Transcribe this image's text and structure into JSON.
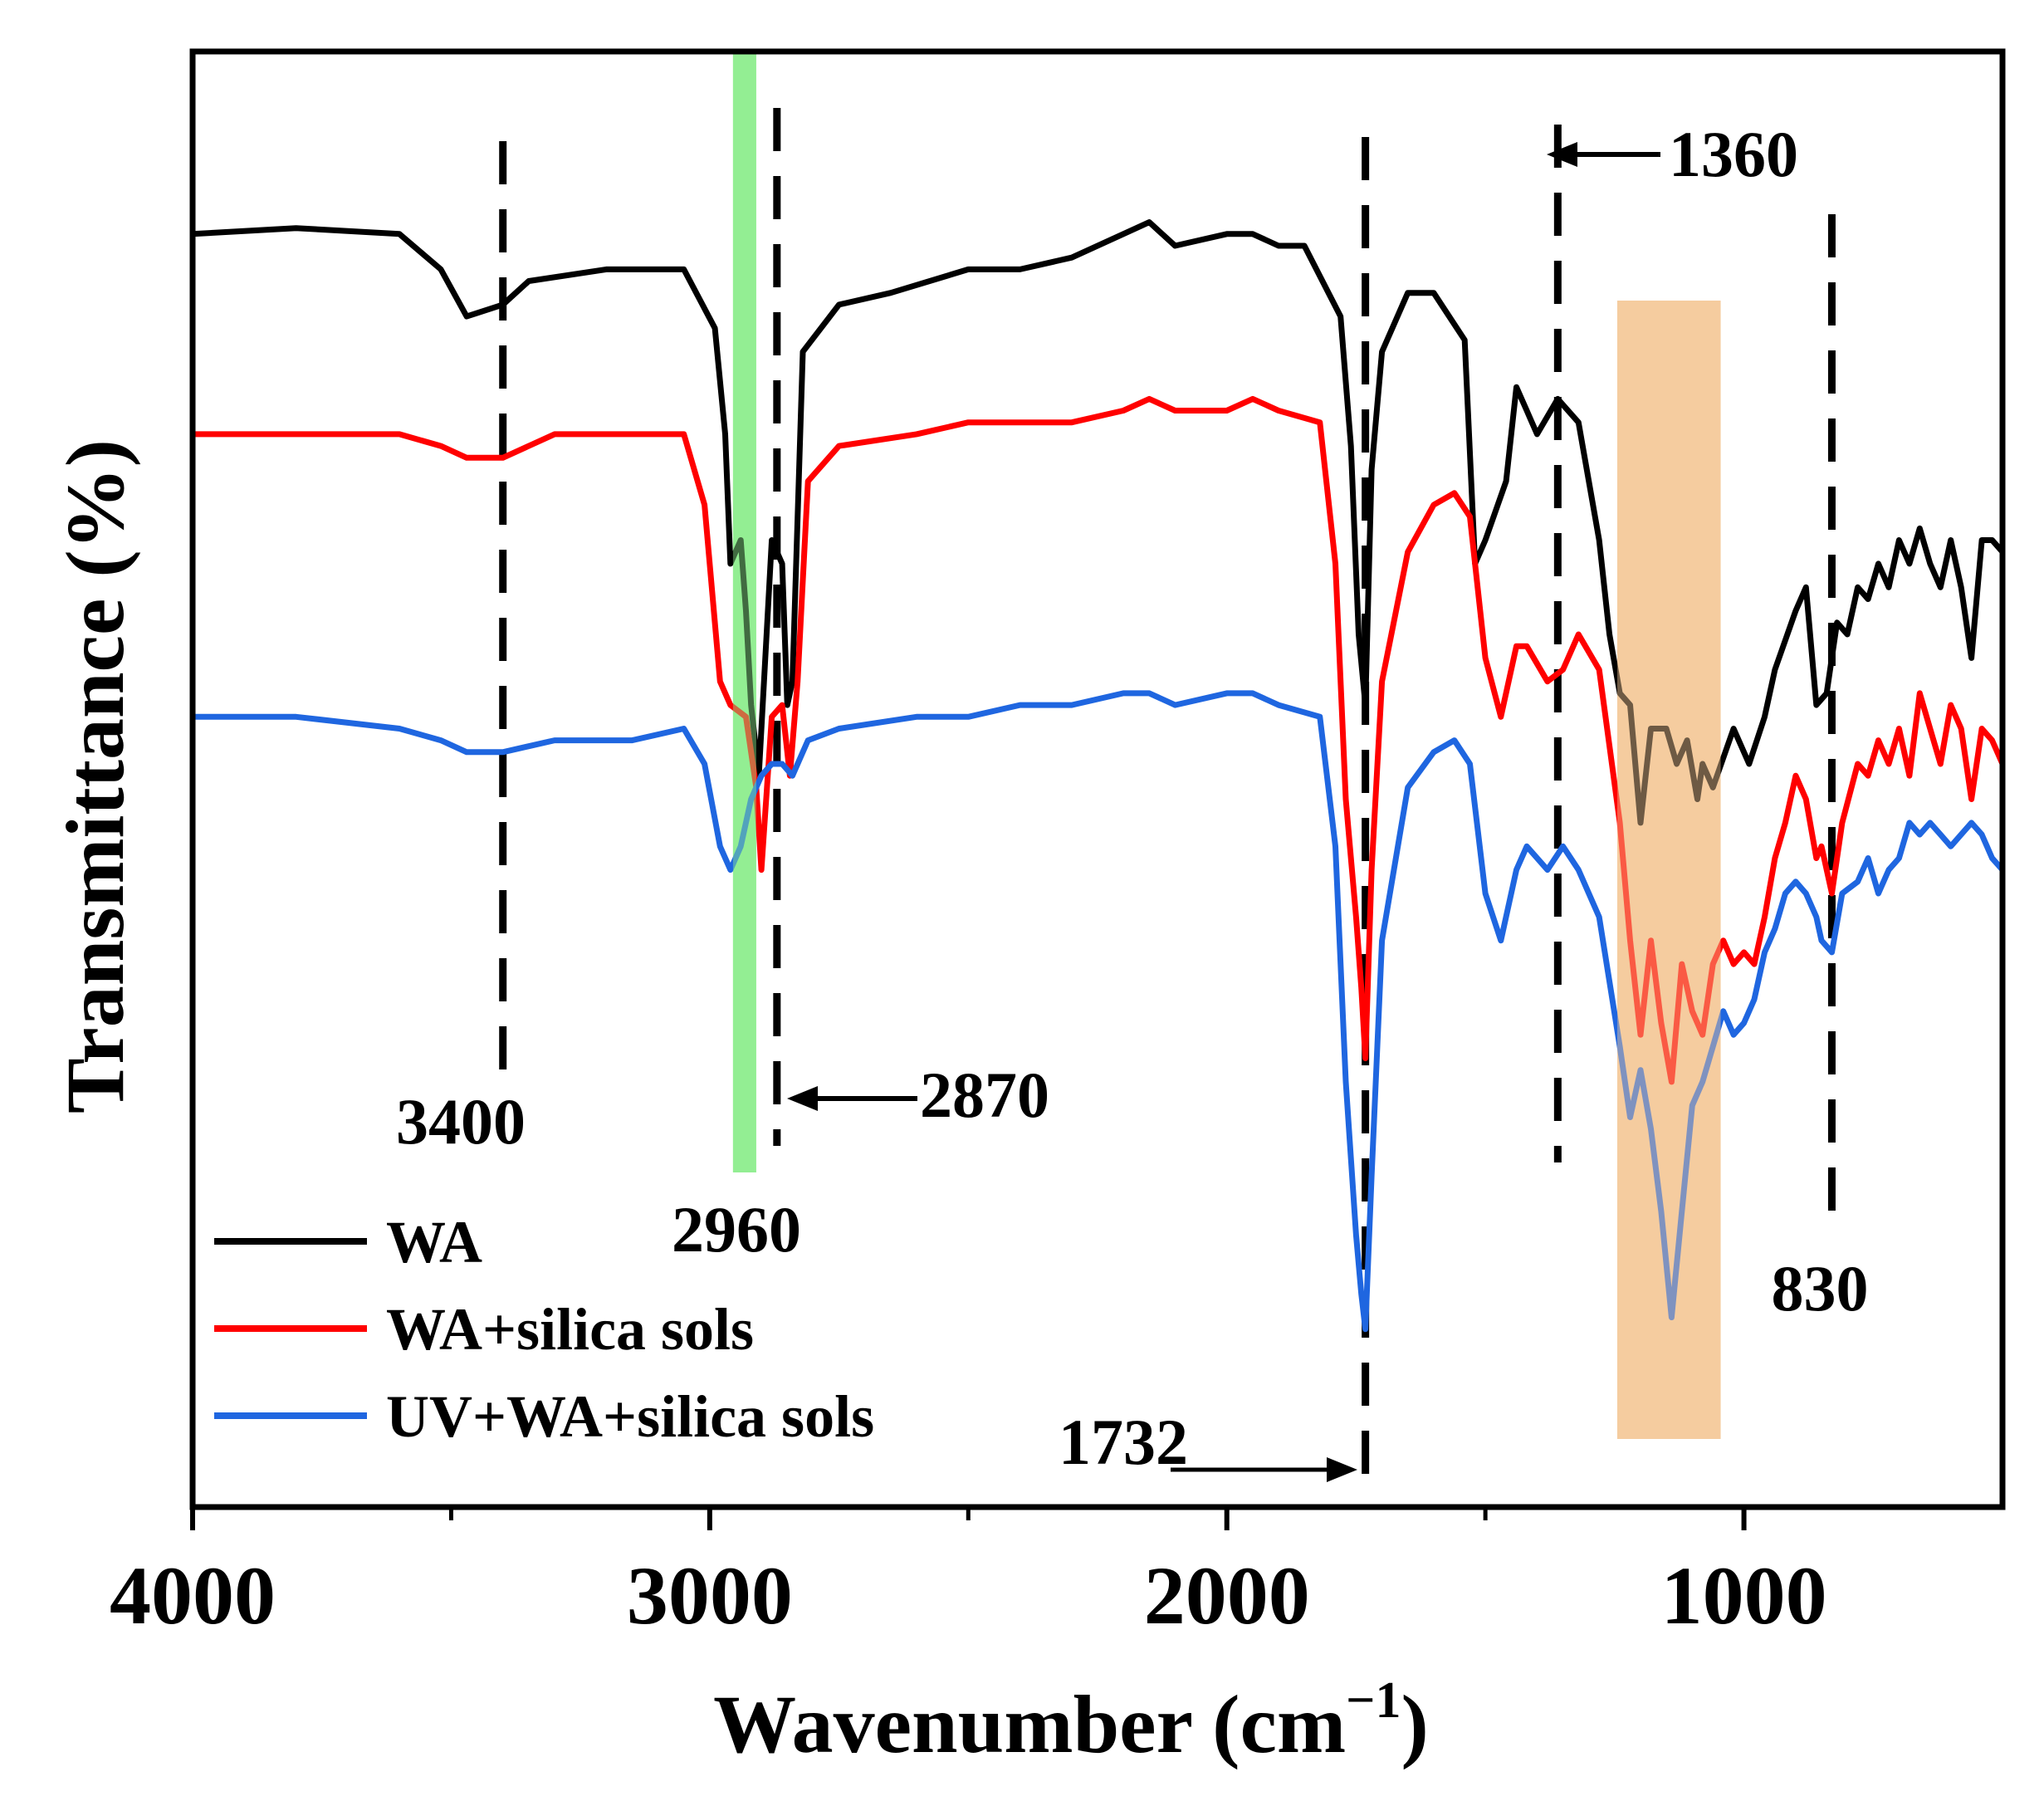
{
  "chart_data": {
    "type": "line",
    "title": "",
    "xlabel": "Wavenumber",
    "xlabel_unit": "(cm",
    "xlabel_unit_sup": "−1",
    "xlabel_unit_close": ")",
    "ylabel": "Transmittance (%)",
    "xlim": [
      4000,
      500
    ],
    "x_reversed": true,
    "x_ticks": [
      4000,
      3000,
      2000,
      1000
    ],
    "x_tick_labels": [
      "4000",
      "3000",
      "2000",
      "1000"
    ],
    "x_minor_ticks": [
      3500,
      2500,
      1500
    ],
    "y_ticks_shown": false,
    "y_scale": "arbitrary (offset traces)",
    "grid": false,
    "legend_position": "bottom-left",
    "series": [
      {
        "name": "WA",
        "color": "#000000",
        "points": [
          [
            4000,
            0.1
          ],
          [
            3800,
            0.095
          ],
          [
            3600,
            0.1
          ],
          [
            3520,
            0.13
          ],
          [
            3470,
            0.17
          ],
          [
            3400,
            0.16
          ],
          [
            3350,
            0.14
          ],
          [
            3200,
            0.13
          ],
          [
            3050,
            0.13
          ],
          [
            2990,
            0.18
          ],
          [
            2970,
            0.27
          ],
          [
            2960,
            0.38
          ],
          [
            2940,
            0.36
          ],
          [
            2930,
            0.42
          ],
          [
            2920,
            0.5
          ],
          [
            2905,
            0.56
          ],
          [
            2880,
            0.36
          ],
          [
            2860,
            0.38
          ],
          [
            2850,
            0.5
          ],
          [
            2840,
            0.48
          ],
          [
            2820,
            0.2
          ],
          [
            2750,
            0.16
          ],
          [
            2650,
            0.15
          ],
          [
            2500,
            0.13
          ],
          [
            2400,
            0.13
          ],
          [
            2300,
            0.12
          ],
          [
            2200,
            0.1
          ],
          [
            2150,
            0.09
          ],
          [
            2100,
            0.11
          ],
          [
            2000,
            0.1
          ],
          [
            1950,
            0.1
          ],
          [
            1900,
            0.11
          ],
          [
            1850,
            0.11
          ],
          [
            1780,
            0.17
          ],
          [
            1760,
            0.28
          ],
          [
            1745,
            0.44
          ],
          [
            1732,
            0.5
          ],
          [
            1720,
            0.3
          ],
          [
            1700,
            0.2
          ],
          [
            1650,
            0.15
          ],
          [
            1600,
            0.15
          ],
          [
            1540,
            0.19
          ],
          [
            1520,
            0.38
          ],
          [
            1500,
            0.36
          ],
          [
            1460,
            0.31
          ],
          [
            1440,
            0.23
          ],
          [
            1420,
            0.25
          ],
          [
            1400,
            0.27
          ],
          [
            1360,
            0.24
          ],
          [
            1320,
            0.26
          ],
          [
            1280,
            0.36
          ],
          [
            1260,
            0.44
          ],
          [
            1240,
            0.49
          ],
          [
            1220,
            0.5
          ],
          [
            1200,
            0.6
          ],
          [
            1180,
            0.52
          ],
          [
            1150,
            0.52
          ],
          [
            1130,
            0.55
          ],
          [
            1110,
            0.53
          ],
          [
            1090,
            0.58
          ],
          [
            1080,
            0.55
          ],
          [
            1060,
            0.57
          ],
          [
            1020,
            0.52
          ],
          [
            990,
            0.55
          ],
          [
            960,
            0.51
          ],
          [
            940,
            0.47
          ],
          [
            900,
            0.42
          ],
          [
            880,
            0.4
          ],
          [
            860,
            0.5
          ],
          [
            840,
            0.49
          ],
          [
            820,
            0.43
          ],
          [
            800,
            0.44
          ],
          [
            780,
            0.4
          ],
          [
            760,
            0.41
          ],
          [
            740,
            0.38
          ],
          [
            720,
            0.4
          ],
          [
            700,
            0.36
          ],
          [
            680,
            0.38
          ],
          [
            660,
            0.35
          ],
          [
            640,
            0.38
          ],
          [
            620,
            0.4
          ],
          [
            600,
            0.36
          ],
          [
            580,
            0.4
          ],
          [
            560,
            0.46
          ],
          [
            540,
            0.36
          ],
          [
            520,
            0.36
          ],
          [
            500,
            0.37
          ]
        ]
      },
      {
        "name": "WA+silica sols",
        "color": "#ff0000",
        "points": [
          [
            4000,
            0.27
          ],
          [
            3800,
            0.27
          ],
          [
            3600,
            0.27
          ],
          [
            3520,
            0.28
          ],
          [
            3470,
            0.29
          ],
          [
            3400,
            0.29
          ],
          [
            3300,
            0.27
          ],
          [
            3150,
            0.27
          ],
          [
            3050,
            0.27
          ],
          [
            3010,
            0.33
          ],
          [
            2980,
            0.48
          ],
          [
            2960,
            0.5
          ],
          [
            2930,
            0.51
          ],
          [
            2910,
            0.57
          ],
          [
            2900,
            0.64
          ],
          [
            2880,
            0.51
          ],
          [
            2860,
            0.5
          ],
          [
            2845,
            0.56
          ],
          [
            2830,
            0.48
          ],
          [
            2810,
            0.31
          ],
          [
            2750,
            0.28
          ],
          [
            2600,
            0.27
          ],
          [
            2500,
            0.26
          ],
          [
            2400,
            0.26
          ],
          [
            2300,
            0.26
          ],
          [
            2200,
            0.25
          ],
          [
            2150,
            0.24
          ],
          [
            2100,
            0.25
          ],
          [
            2000,
            0.25
          ],
          [
            1950,
            0.24
          ],
          [
            1900,
            0.25
          ],
          [
            1820,
            0.26
          ],
          [
            1790,
            0.38
          ],
          [
            1770,
            0.58
          ],
          [
            1750,
            0.68
          ],
          [
            1740,
            0.74
          ],
          [
            1732,
            0.8
          ],
          [
            1720,
            0.64
          ],
          [
            1700,
            0.48
          ],
          [
            1650,
            0.37
          ],
          [
            1600,
            0.33
          ],
          [
            1560,
            0.32
          ],
          [
            1530,
            0.34
          ],
          [
            1500,
            0.46
          ],
          [
            1470,
            0.51
          ],
          [
            1440,
            0.45
          ],
          [
            1420,
            0.45
          ],
          [
            1380,
            0.48
          ],
          [
            1350,
            0.47
          ],
          [
            1320,
            0.44
          ],
          [
            1280,
            0.47
          ],
          [
            1240,
            0.6
          ],
          [
            1220,
            0.7
          ],
          [
            1200,
            0.78
          ],
          [
            1180,
            0.7
          ],
          [
            1160,
            0.77
          ],
          [
            1140,
            0.82
          ],
          [
            1120,
            0.72
          ],
          [
            1100,
            0.76
          ],
          [
            1080,
            0.78
          ],
          [
            1060,
            0.72
          ],
          [
            1040,
            0.7
          ],
          [
            1020,
            0.72
          ],
          [
            1000,
            0.71
          ],
          [
            980,
            0.72
          ],
          [
            960,
            0.68
          ],
          [
            940,
            0.63
          ],
          [
            920,
            0.6
          ],
          [
            900,
            0.56
          ],
          [
            880,
            0.58
          ],
          [
            860,
            0.63
          ],
          [
            850,
            0.62
          ],
          [
            830,
            0.66
          ],
          [
            810,
            0.6
          ],
          [
            780,
            0.55
          ],
          [
            760,
            0.56
          ],
          [
            740,
            0.53
          ],
          [
            720,
            0.55
          ],
          [
            700,
            0.52
          ],
          [
            680,
            0.56
          ],
          [
            660,
            0.49
          ],
          [
            640,
            0.52
          ],
          [
            620,
            0.55
          ],
          [
            600,
            0.5
          ],
          [
            580,
            0.52
          ],
          [
            560,
            0.58
          ],
          [
            540,
            0.52
          ],
          [
            520,
            0.53
          ],
          [
            500,
            0.55
          ]
        ]
      },
      {
        "name": "UV+WA+silica sols",
        "color": "#1f66e0",
        "points": [
          [
            4000,
            0.51
          ],
          [
            3800,
            0.51
          ],
          [
            3600,
            0.52
          ],
          [
            3520,
            0.53
          ],
          [
            3470,
            0.54
          ],
          [
            3400,
            0.54
          ],
          [
            3300,
            0.53
          ],
          [
            3150,
            0.53
          ],
          [
            3050,
            0.52
          ],
          [
            3010,
            0.55
          ],
          [
            2980,
            0.62
          ],
          [
            2960,
            0.64
          ],
          [
            2940,
            0.62
          ],
          [
            2920,
            0.58
          ],
          [
            2900,
            0.56
          ],
          [
            2880,
            0.55
          ],
          [
            2860,
            0.55
          ],
          [
            2840,
            0.56
          ],
          [
            2810,
            0.53
          ],
          [
            2750,
            0.52
          ],
          [
            2600,
            0.51
          ],
          [
            2500,
            0.51
          ],
          [
            2400,
            0.5
          ],
          [
            2300,
            0.5
          ],
          [
            2200,
            0.49
          ],
          [
            2150,
            0.49
          ],
          [
            2100,
            0.5
          ],
          [
            2000,
            0.49
          ],
          [
            1950,
            0.49
          ],
          [
            1900,
            0.5
          ],
          [
            1820,
            0.51
          ],
          [
            1790,
            0.62
          ],
          [
            1770,
            0.82
          ],
          [
            1750,
            0.95
          ],
          [
            1740,
            1.0
          ],
          [
            1732,
            1.03
          ],
          [
            1720,
            0.9
          ],
          [
            1700,
            0.7
          ],
          [
            1650,
            0.57
          ],
          [
            1600,
            0.54
          ],
          [
            1560,
            0.53
          ],
          [
            1530,
            0.55
          ],
          [
            1500,
            0.66
          ],
          [
            1470,
            0.7
          ],
          [
            1440,
            0.64
          ],
          [
            1420,
            0.62
          ],
          [
            1380,
            0.64
          ],
          [
            1350,
            0.62
          ],
          [
            1320,
            0.64
          ],
          [
            1280,
            0.68
          ],
          [
            1240,
            0.79
          ],
          [
            1220,
            0.85
          ],
          [
            1200,
            0.81
          ],
          [
            1180,
            0.86
          ],
          [
            1160,
            0.93
          ],
          [
            1140,
            1.02
          ],
          [
            1120,
            0.93
          ],
          [
            1100,
            0.84
          ],
          [
            1080,
            0.82
          ],
          [
            1060,
            0.79
          ],
          [
            1040,
            0.76
          ],
          [
            1020,
            0.78
          ],
          [
            1000,
            0.77
          ],
          [
            980,
            0.75
          ],
          [
            960,
            0.71
          ],
          [
            940,
            0.69
          ],
          [
            920,
            0.66
          ],
          [
            900,
            0.65
          ],
          [
            880,
            0.66
          ],
          [
            860,
            0.68
          ],
          [
            850,
            0.7
          ],
          [
            830,
            0.71
          ],
          [
            810,
            0.66
          ],
          [
            780,
            0.65
          ],
          [
            760,
            0.63
          ],
          [
            740,
            0.66
          ],
          [
            720,
            0.64
          ],
          [
            700,
            0.63
          ],
          [
            680,
            0.6
          ],
          [
            660,
            0.61
          ],
          [
            640,
            0.6
          ],
          [
            620,
            0.61
          ],
          [
            600,
            0.62
          ],
          [
            580,
            0.61
          ],
          [
            560,
            0.6
          ],
          [
            540,
            0.61
          ],
          [
            520,
            0.63
          ],
          [
            500,
            0.64
          ]
        ]
      }
    ],
    "highlight_bands": [
      {
        "x_from": 2955,
        "x_to": 2910,
        "color": "#90ee90"
      },
      {
        "x_from": 1245,
        "x_to": 1045,
        "color": "#f5c896"
      }
    ],
    "reference_lines": [
      {
        "x": 3400,
        "label": "3400"
      },
      {
        "x": 2870,
        "label": "2870"
      },
      {
        "x": 1732,
        "label": "1732"
      },
      {
        "x": 1360,
        "label": "1360"
      },
      {
        "x": 830,
        "label": "830"
      }
    ],
    "annotations": [
      {
        "text": "3400"
      },
      {
        "text": "2960"
      },
      {
        "text": "2870"
      },
      {
        "text": "1732"
      },
      {
        "text": "1360"
      },
      {
        "text": "830"
      }
    ]
  }
}
